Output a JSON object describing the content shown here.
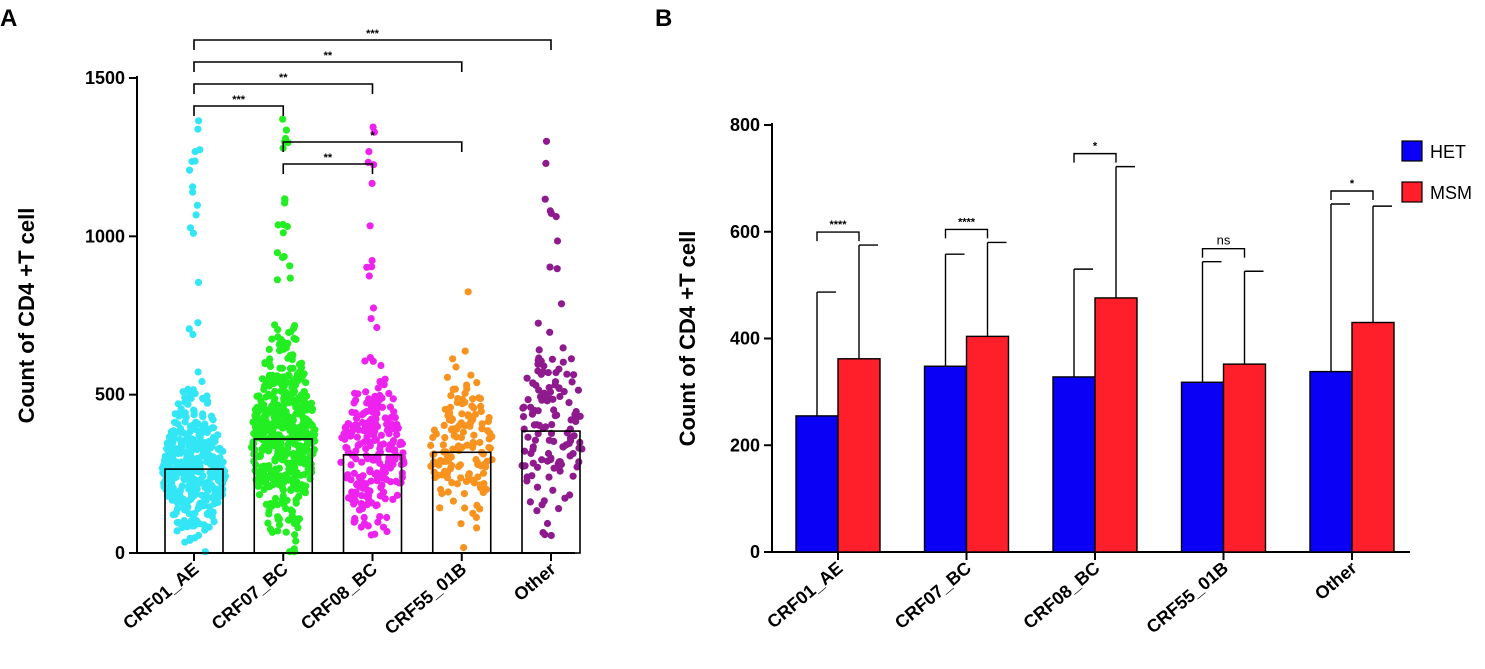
{
  "panels": [
    {
      "letter": "A"
    },
    {
      "letter": "B"
    }
  ],
  "chart_data": [
    {
      "type": "scatter",
      "panel": "A",
      "title": "",
      "xlabel": "",
      "ylabel": "Count of CD4 +T cell",
      "ylim": [
        0,
        1500
      ],
      "yticks": [
        0,
        500,
        1000,
        1500
      ],
      "categories": [
        "CRF01_AE",
        "CRF07_BC",
        "CRF08_BC",
        "CRF55_01B",
        "Other"
      ],
      "bar_means": [
        265,
        360,
        310,
        318,
        385
      ],
      "point_colors": [
        "#33e6f5",
        "#22ee22",
        "#ee22ee",
        "#f7931e",
        "#8e1a8e"
      ],
      "point_counts": [
        420,
        520,
        240,
        150,
        140
      ],
      "point_max": [
        1365,
        1370,
        1345,
        825,
        1300
      ],
      "comparisons": [
        {
          "a": 0,
          "b": 1,
          "label": "***"
        },
        {
          "a": 0,
          "b": 2,
          "label": "**"
        },
        {
          "a": 0,
          "b": 3,
          "label": "**"
        },
        {
          "a": 0,
          "b": 4,
          "label": "***"
        },
        {
          "a": 1,
          "b": 2,
          "label": "**"
        },
        {
          "a": 1,
          "b": 3,
          "label": "*"
        }
      ]
    },
    {
      "type": "bar",
      "panel": "B",
      "title": "",
      "xlabel": "",
      "ylabel": "Count of CD4 +T cell",
      "ylim": [
        0,
        800
      ],
      "yticks": [
        0,
        200,
        400,
        600,
        800
      ],
      "categories": [
        "CRF01_AE",
        "CRF07_BC",
        "CRF08_BC",
        "CRF55_01B",
        "Other"
      ],
      "series": [
        {
          "name": "HET",
          "color": "#0a00f5",
          "values": [
            255,
            348,
            328,
            318,
            338
          ],
          "errors": [
            232,
            210,
            202,
            226,
            314
          ]
        },
        {
          "name": "MSM",
          "color": "#ff1f2a",
          "values": [
            362,
            404,
            476,
            352,
            430
          ],
          "errors": [
            213,
            176,
            246,
            174,
            218
          ]
        }
      ],
      "comparisons": [
        "****",
        "****",
        "*",
        "ns",
        "*"
      ],
      "legend": {
        "position": "top-right",
        "entries": [
          "HET",
          "MSM"
        ]
      }
    }
  ]
}
